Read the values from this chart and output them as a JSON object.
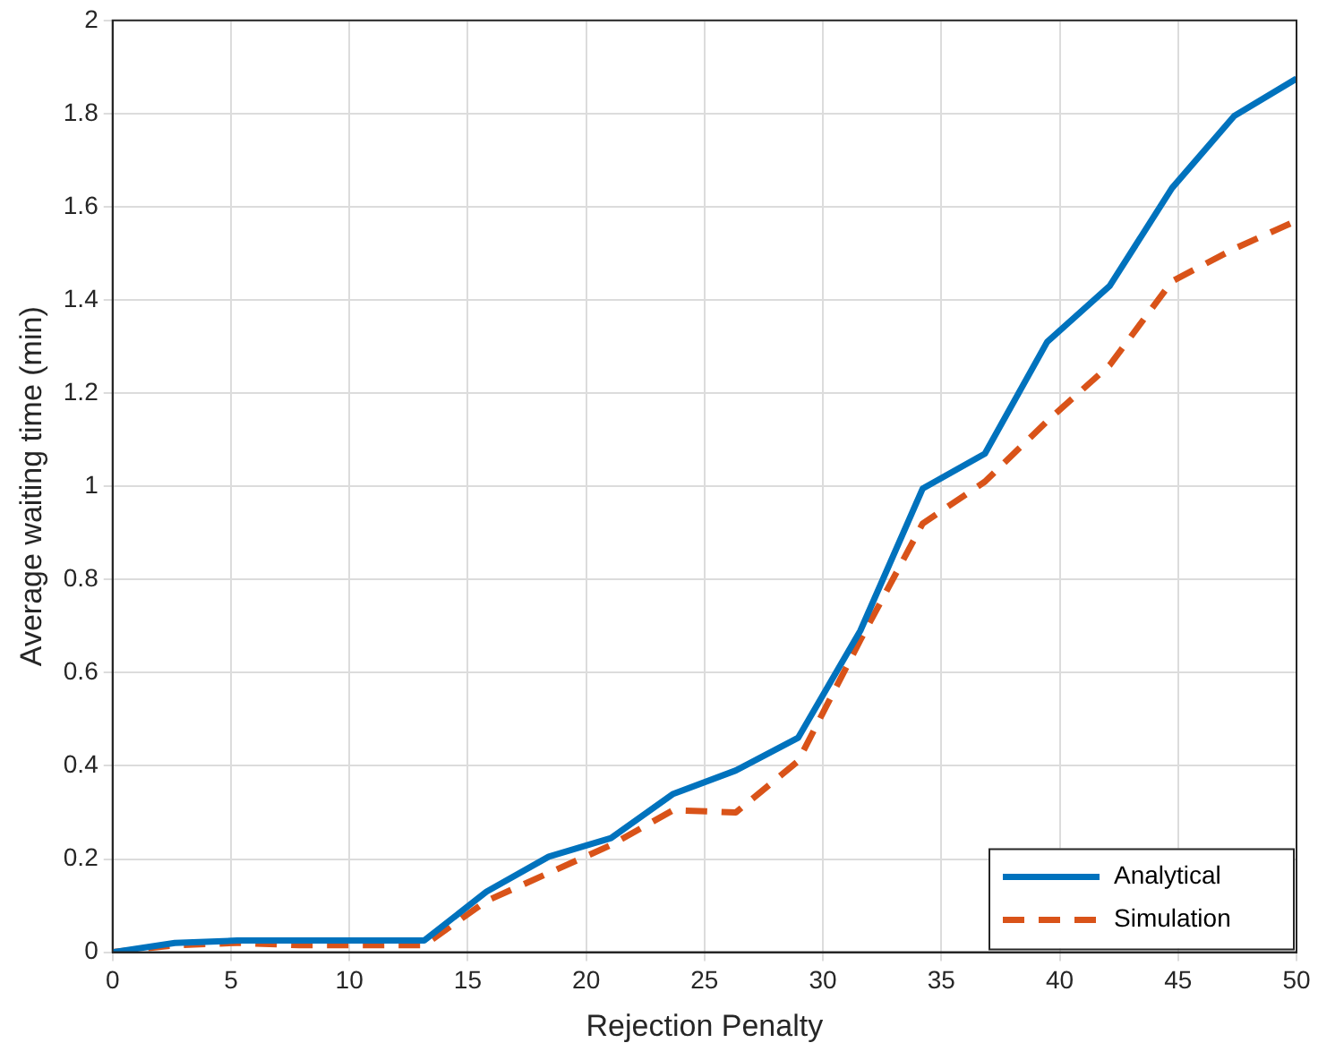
{
  "chart_data": {
    "type": "line",
    "xlabel": "Rejection Penalty",
    "ylabel": "Average waiting time (min)",
    "x": [
      0,
      2.63,
      5.26,
      7.89,
      10.53,
      13.16,
      15.79,
      18.42,
      21.05,
      23.68,
      26.32,
      28.95,
      31.58,
      34.21,
      36.84,
      39.47,
      42.11,
      44.74,
      47.37,
      50
    ],
    "series": [
      {
        "name": "Analytical",
        "color": "#0072bd",
        "line_style": "solid",
        "values": [
          0,
          0.02,
          0.025,
          0.025,
          0.025,
          0.025,
          0.13,
          0.205,
          0.245,
          0.34,
          0.39,
          0.46,
          0.69,
          0.995,
          1.07,
          1.31,
          1.43,
          1.64,
          1.795,
          1.875
        ]
      },
      {
        "name": "Simulation",
        "color": "#d95319",
        "line_style": "dashed",
        "values": [
          0,
          0.015,
          0.02,
          0.015,
          0.015,
          0.015,
          0.11,
          0.17,
          0.23,
          0.305,
          0.3,
          0.41,
          0.67,
          0.92,
          1.01,
          1.14,
          1.26,
          1.44,
          1.51,
          1.57
        ]
      }
    ],
    "xlim": [
      0,
      50
    ],
    "xticks": [
      0,
      5,
      10,
      15,
      20,
      25,
      30,
      35,
      40,
      45,
      50
    ],
    "ylim": [
      0,
      2
    ],
    "yticks": [
      0,
      0.2,
      0.4,
      0.6,
      0.8,
      1,
      1.2,
      1.4,
      1.6,
      1.8,
      2
    ],
    "grid": true,
    "legend": "bottom right",
    "marker": "none"
  }
}
